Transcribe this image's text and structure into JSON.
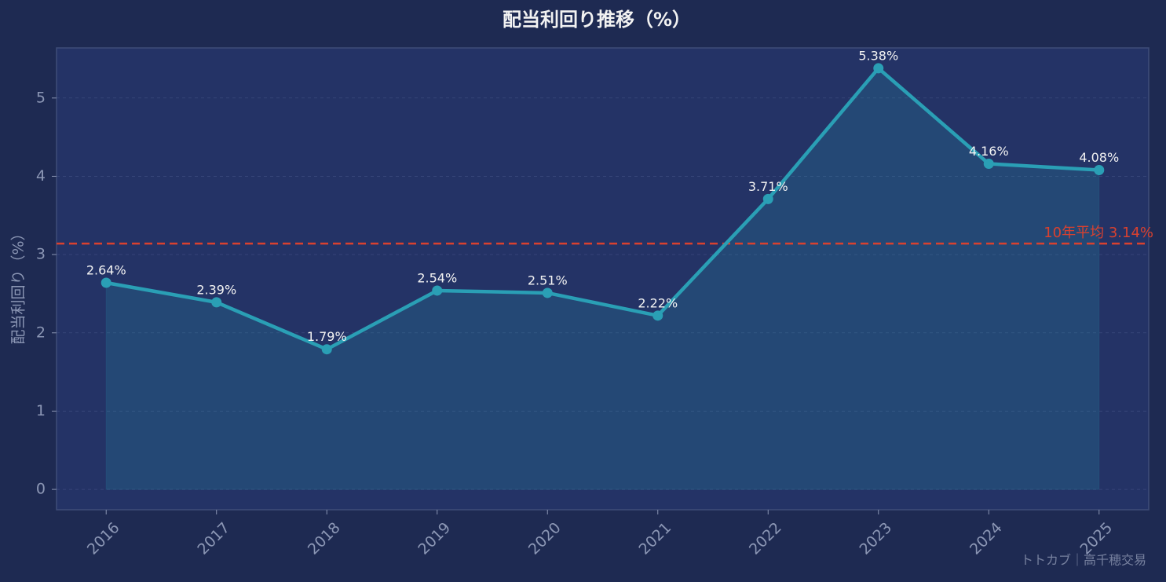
{
  "chart_data": {
    "type": "line",
    "title": "配当利回り推移（%）",
    "y_label": "配当利回り（%）",
    "x": [
      2016,
      2017,
      2018,
      2019,
      2020,
      2021,
      2022,
      2023,
      2024,
      2025
    ],
    "xlim": [
      2015.55,
      2025.45
    ],
    "xticks": [
      2016,
      2017,
      2018,
      2019,
      2020,
      2021,
      2022,
      2023,
      2024,
      2025
    ],
    "values": [
      2.64,
      2.39,
      1.79,
      2.54,
      2.51,
      2.22,
      3.71,
      5.38,
      4.16,
      4.08
    ],
    "value_labels": [
      "2.64%",
      "2.39%",
      "1.79%",
      "2.54%",
      "2.51%",
      "2.22%",
      "3.71%",
      "5.38%",
      "4.16%",
      "4.08%"
    ],
    "color": "#2a9fb5",
    "ylim": [
      -0.26,
      5.64
    ],
    "yticks": [
      0,
      1,
      2,
      3,
      4,
      5
    ],
    "grid": true,
    "average": {
      "value": 3.14,
      "label": "10年平均 3.14%",
      "color": "#d9412f"
    },
    "watermark": "トトカブ｜高千穂交易"
  }
}
